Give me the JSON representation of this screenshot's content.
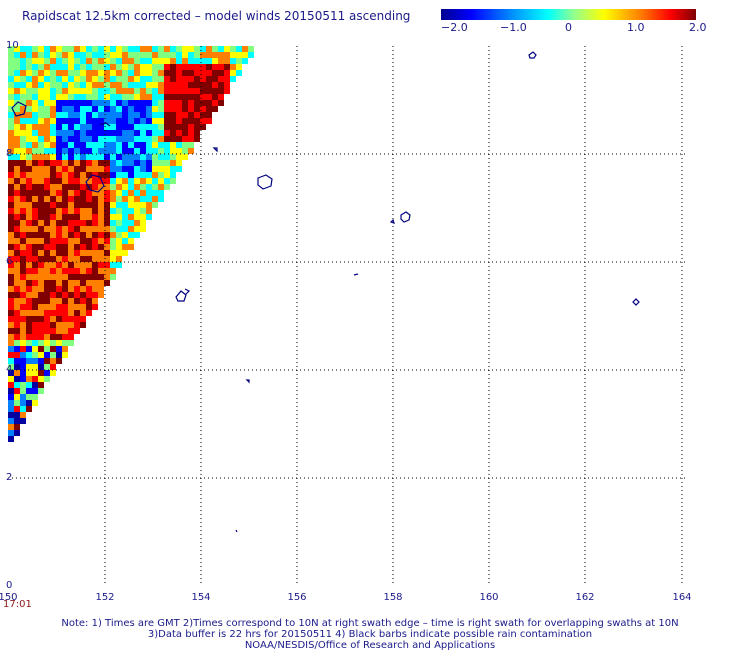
{
  "title": "Rapidscat 12.5km corrected – model winds 20150511 ascending",
  "colorbar": {
    "tick_labels": [
      "−2.0",
      "−1.0",
      "0",
      "1.0",
      "2.0"
    ],
    "tick_values": [
      -2.0,
      -1.0,
      0,
      1.0,
      2.0
    ],
    "colors": [
      "#0000a0",
      "#0000ff",
      "#0080ff",
      "#00ffff",
      "#80ff80",
      "#ffff00",
      "#ff8000",
      "#ff0000",
      "#800000"
    ]
  },
  "map": {
    "lon_range": [
      150,
      165
    ],
    "lat_range": [
      0,
      10
    ],
    "x_tick_labels": [
      "150",
      "152",
      "154",
      "156",
      "158",
      "160",
      "162",
      "164"
    ],
    "y_tick_labels": [
      "0",
      "2",
      "4",
      "6",
      "8",
      "10"
    ],
    "time_label": "17:01",
    "grid": "dotted",
    "swath": "wind speed difference (satellite – model), left edge of map"
  },
  "notes": [
    "Note: 1) Times are GMT 2)Times correspond to 10N at right swath edge – time is right swath for overlapping swaths at 10N",
    "3)Data buffer is 22 hrs for 20150511 4) Black barbs indicate possible rain contamination",
    "NOAA/NESDIS/Office of Research and Applications"
  ]
}
